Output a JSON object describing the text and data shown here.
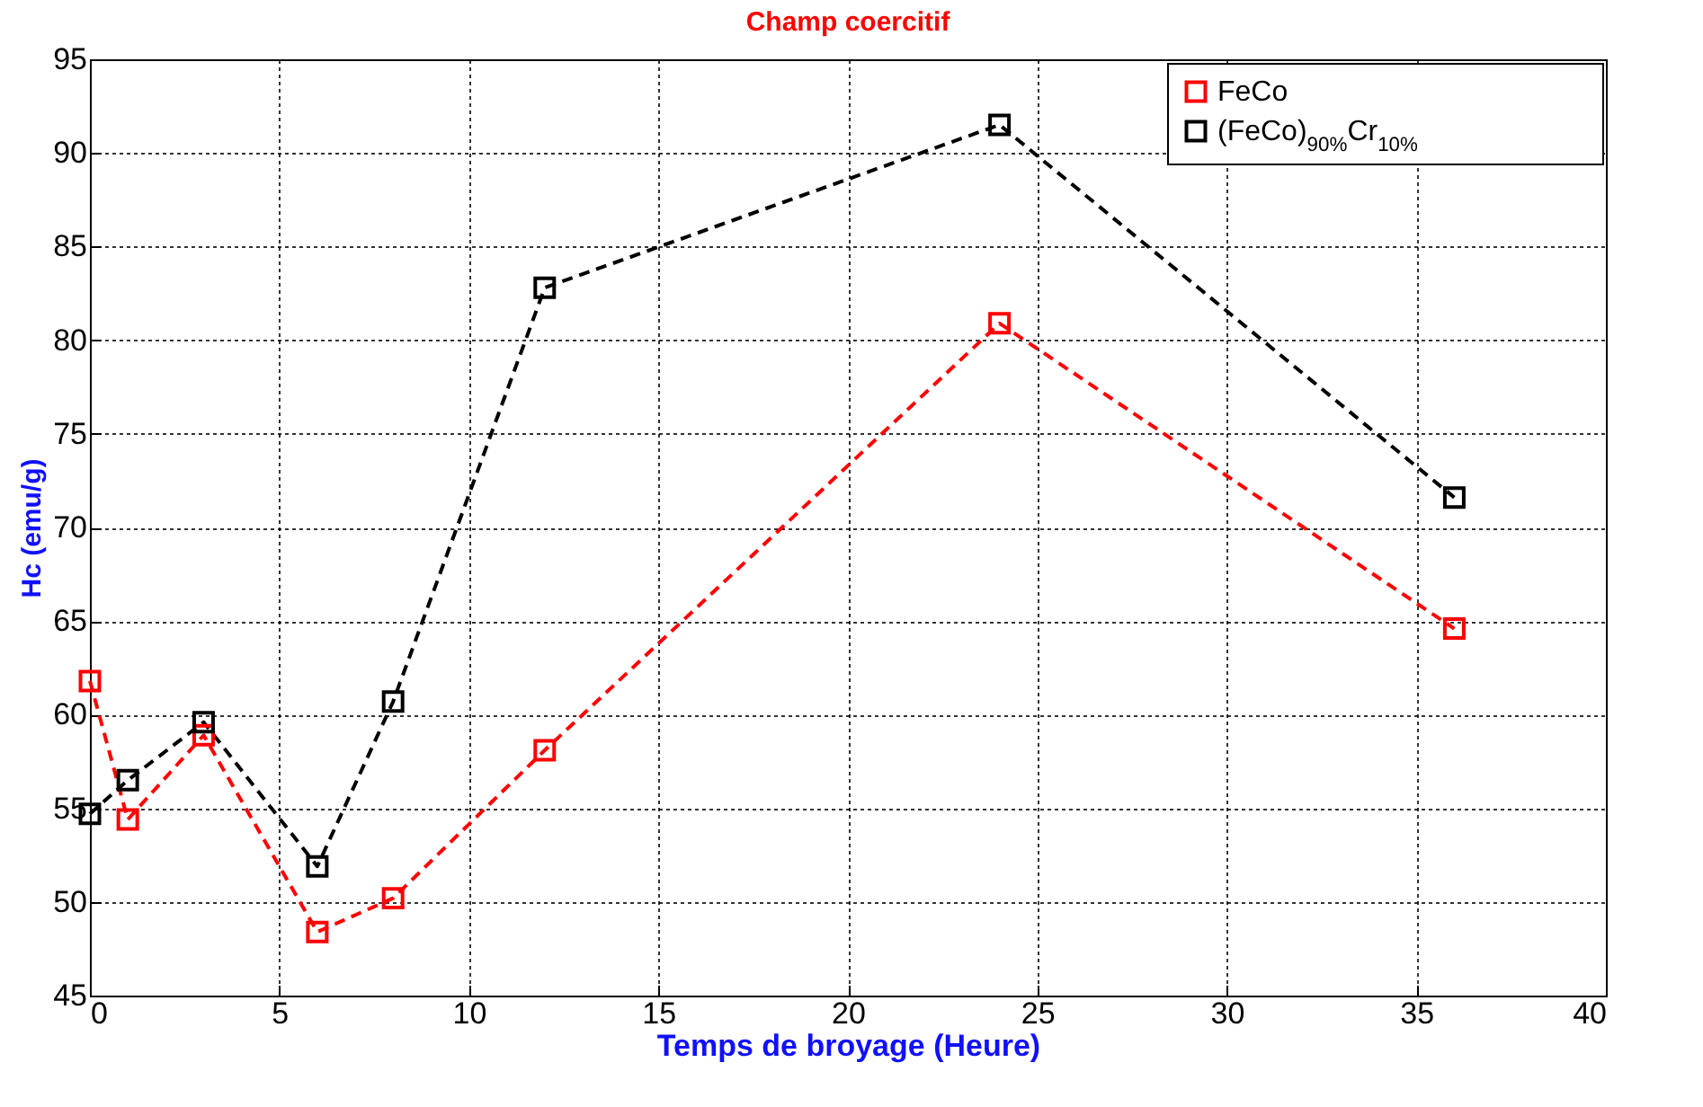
{
  "chart_data": {
    "type": "line",
    "title": "Champ coercitif",
    "xlabel": "Temps de broyage (Heure)",
    "ylabel": "Hc (emu/g)",
    "x": [
      0,
      1,
      3,
      6,
      8,
      12,
      24,
      36
    ],
    "series": [
      {
        "name": "FeCo",
        "color": "#ff0000",
        "values": [
          61.8,
          54.4,
          58.9,
          48.4,
          50.2,
          58.1,
          80.9,
          64.6
        ]
      },
      {
        "name": "(FeCo)$_{90%}$Cr$_{10%}$",
        "color": "#000000",
        "values": [
          54.7,
          56.5,
          59.6,
          51.9,
          60.7,
          82.8,
          91.5,
          71.6
        ]
      }
    ],
    "xlim": [
      0,
      40
    ],
    "xticks": [
      0,
      5,
      10,
      15,
      20,
      25,
      30,
      35,
      40
    ],
    "ylim": [
      45,
      95
    ],
    "yticks": [
      45,
      50,
      55,
      60,
      65,
      70,
      75,
      80,
      85,
      90,
      95
    ],
    "grid": true,
    "legend": "top right",
    "marker": "square",
    "line_style": "dashed"
  }
}
